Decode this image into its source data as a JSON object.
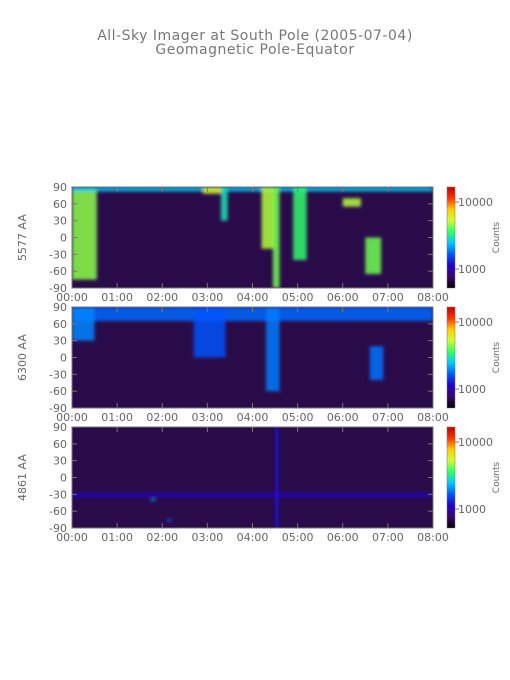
{
  "title": "All-Sky Imager at South Pole (2005-07-04)",
  "subtitle": "Geomagnetic Pole-Equator",
  "colors": {
    "background": "#ffffff",
    "axis": "#777777",
    "text": "#666666",
    "panel_base": "#2a0b4a",
    "colormap": [
      "#000000",
      "#3a0a6a",
      "#2200cc",
      "#0055ff",
      "#00c8ff",
      "#33ff66",
      "#ccff33",
      "#ffcc00",
      "#ff3300",
      "#c80000"
    ]
  },
  "chart_data": {
    "type": "heatmap",
    "x_ticks": [
      "00:00",
      "01:00",
      "02:00",
      "03:00",
      "04:00",
      "05:00",
      "06:00",
      "07:00",
      "08:00"
    ],
    "x_range": [
      "00:00",
      "08:00"
    ],
    "y_ticks": [
      90,
      60,
      30,
      0,
      -30,
      -60,
      -90
    ],
    "y_range": [
      -90,
      90
    ],
    "colorbar_label": "Counts",
    "panels": [
      {
        "ylabel": "5577 AA",
        "colorbar_ticks": [
          "10000",
          "1000"
        ],
        "features": [
          {
            "t_start": 0.0,
            "t_end": 0.55,
            "lat_min": -75,
            "lat_max": 90,
            "level": 0.62
          },
          {
            "t_start": 0.0,
            "t_end": 8.0,
            "lat_min": 82,
            "lat_max": 90,
            "level": 0.45
          },
          {
            "t_start": 2.9,
            "t_end": 3.3,
            "lat_min": 78,
            "lat_max": 90,
            "level": 0.7
          },
          {
            "t_start": 3.3,
            "t_end": 3.45,
            "lat_min": 30,
            "lat_max": 90,
            "level": 0.5
          },
          {
            "t_start": 4.2,
            "t_end": 4.5,
            "lat_min": -20,
            "lat_max": 90,
            "level": 0.65
          },
          {
            "t_start": 4.45,
            "t_end": 4.6,
            "lat_min": -90,
            "lat_max": 90,
            "level": 0.6
          },
          {
            "t_start": 4.9,
            "t_end": 5.2,
            "lat_min": -40,
            "lat_max": 90,
            "level": 0.55
          },
          {
            "t_start": 6.0,
            "t_end": 6.4,
            "lat_min": 55,
            "lat_max": 70,
            "level": 0.65
          },
          {
            "t_start": 6.5,
            "t_end": 6.85,
            "lat_min": -65,
            "lat_max": 0,
            "level": 0.6
          }
        ]
      },
      {
        "ylabel": "6300 AA",
        "colorbar_ticks": [
          "10000",
          "1000"
        ],
        "features": [
          {
            "t_start": 0.0,
            "t_end": 8.0,
            "lat_min": 65,
            "lat_max": 90,
            "level": 0.35
          },
          {
            "t_start": 0.0,
            "t_end": 0.5,
            "lat_min": 30,
            "lat_max": 90,
            "level": 0.38
          },
          {
            "t_start": 2.7,
            "t_end": 3.4,
            "lat_min": 0,
            "lat_max": 90,
            "level": 0.33
          },
          {
            "t_start": 4.3,
            "t_end": 4.6,
            "lat_min": -60,
            "lat_max": 90,
            "level": 0.37
          },
          {
            "t_start": 6.6,
            "t_end": 6.9,
            "lat_min": -40,
            "lat_max": 20,
            "level": 0.36
          }
        ]
      },
      {
        "ylabel": "4861 AA",
        "colorbar_ticks": [
          "10000",
          "1000"
        ],
        "features": [
          {
            "t_start": 0.0,
            "t_end": 8.0,
            "lat_min": -35,
            "lat_max": -28,
            "level": 0.22
          },
          {
            "t_start": 4.5,
            "t_end": 4.58,
            "lat_min": -90,
            "lat_max": 90,
            "level": 0.24
          },
          {
            "t_start": 1.75,
            "t_end": 1.85,
            "lat_min": -42,
            "lat_max": -38,
            "level": 0.4
          },
          {
            "t_start": 2.1,
            "t_end": 2.2,
            "lat_min": -78,
            "lat_max": -74,
            "level": 0.35
          }
        ]
      }
    ]
  }
}
